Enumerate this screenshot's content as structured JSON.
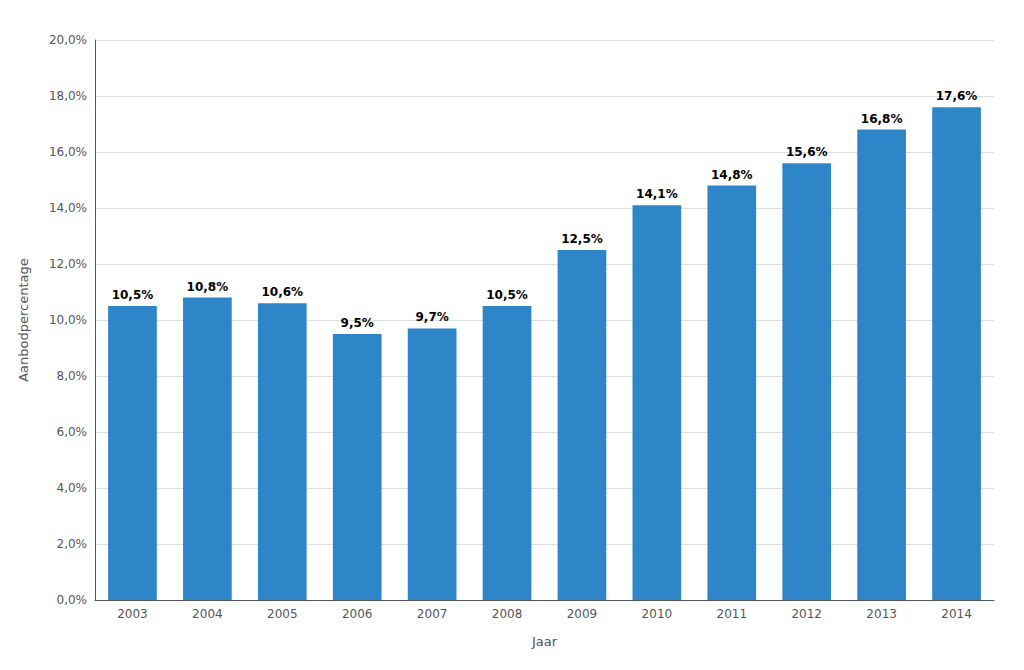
{
  "chart_data": {
    "type": "bar",
    "categories": [
      "2003",
      "2004",
      "2005",
      "2006",
      "2007",
      "2008",
      "2009",
      "2010",
      "2011",
      "2012",
      "2013",
      "2014"
    ],
    "values": [
      10.5,
      10.8,
      10.6,
      9.5,
      9.7,
      10.5,
      12.5,
      14.1,
      14.8,
      15.6,
      16.8,
      17.6
    ],
    "value_labels": [
      "10,5%",
      "10,8%",
      "10,6%",
      "9,5%",
      "9,7%",
      "10,5%",
      "12,5%",
      "14,1%",
      "14,8%",
      "15,6%",
      "16,8%",
      "17,6%"
    ],
    "data_labels": true,
    "color": "#2E86C8",
    "xlabel": "Jaar",
    "ylabel": "Aanbodpercentage",
    "ylim": [
      0,
      20
    ],
    "yticks": [
      {
        "value": 0,
        "label": "0,0%"
      },
      {
        "value": 2,
        "label": "2,0%"
      },
      {
        "value": 4,
        "label": "4,0%"
      },
      {
        "value": 6,
        "label": "6,0%"
      },
      {
        "value": 8,
        "label": "8,0%"
      },
      {
        "value": 10,
        "label": "10,0%"
      },
      {
        "value": 12,
        "label": "12,0%"
      },
      {
        "value": 14,
        "label": "14,0%"
      },
      {
        "value": 16,
        "label": "16,0%"
      },
      {
        "value": 18,
        "label": "18,0%"
      },
      {
        "value": 20,
        "label": "20,0%"
      }
    ],
    "grid": true
  }
}
